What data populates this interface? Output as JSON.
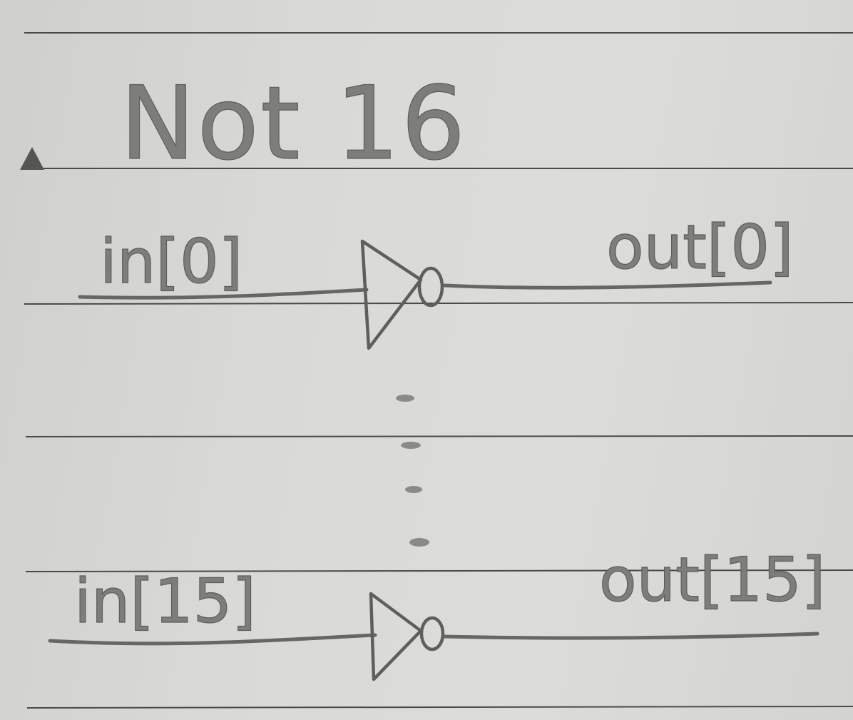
{
  "title": "Not 16",
  "gates": [
    {
      "input_label": "in[0]",
      "output_label": "out[0]"
    },
    {
      "input_label": "in[15]",
      "output_label": "out[15]"
    }
  ],
  "colors": {
    "paper": "#d9d9d6",
    "pencil": "#666664",
    "rule": "#4a4a4a"
  }
}
